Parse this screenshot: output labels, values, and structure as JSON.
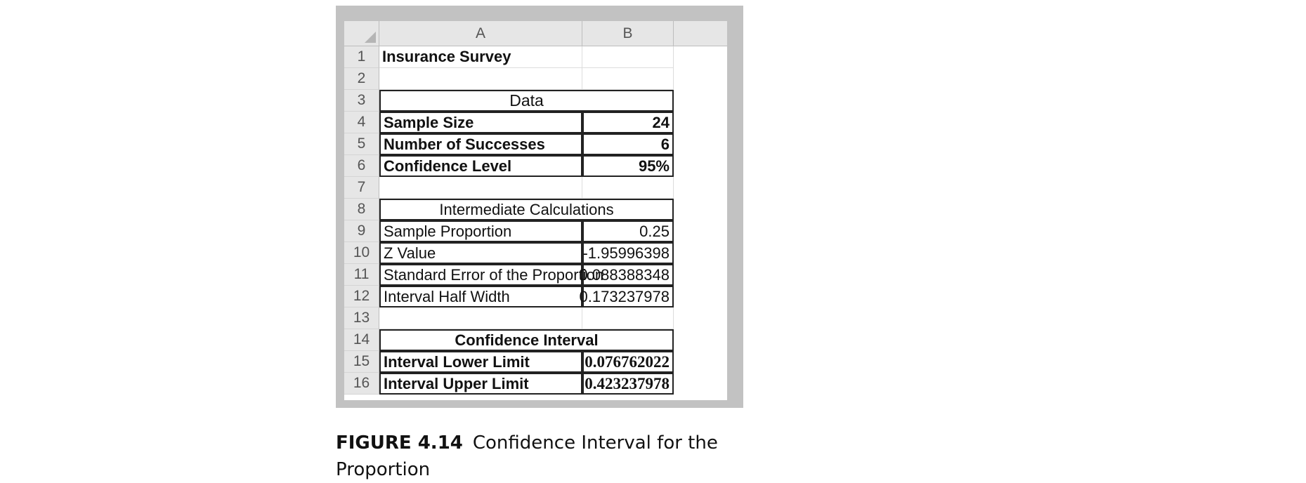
{
  "columns": [
    "A",
    "B"
  ],
  "rows": [
    {
      "n": "1",
      "a": "Insurance Survey",
      "b": ""
    },
    {
      "n": "2",
      "a": "",
      "b": ""
    },
    {
      "n": "3",
      "a": "Data",
      "b": ""
    },
    {
      "n": "4",
      "a": "Sample Size",
      "b": "24"
    },
    {
      "n": "5",
      "a": "Number of Successes",
      "b": "6"
    },
    {
      "n": "6",
      "a": "Confidence Level",
      "b": "95%"
    },
    {
      "n": "7",
      "a": "",
      "b": ""
    },
    {
      "n": "8",
      "a": "Intermediate Calculations",
      "b": ""
    },
    {
      "n": "9",
      "a": "Sample Proportion",
      "b": "0.25"
    },
    {
      "n": "10",
      "a": "Z Value",
      "b": "-1.95996398"
    },
    {
      "n": "11",
      "a": "Standard Error of the Proportion",
      "b": "0.088388348"
    },
    {
      "n": "12",
      "a": "Interval Half Width",
      "b": "0.173237978"
    },
    {
      "n": "13",
      "a": "",
      "b": ""
    },
    {
      "n": "14",
      "a": "Confidence Interval",
      "b": ""
    },
    {
      "n": "15",
      "a": "Interval Lower Limit",
      "b": "0.076762022"
    },
    {
      "n": "16",
      "a": "Interval Upper Limit",
      "b": "0.423237978"
    }
  ],
  "caption": {
    "figure": "FIGURE 4.14",
    "text": "Confidence Interval for the Proportion"
  }
}
